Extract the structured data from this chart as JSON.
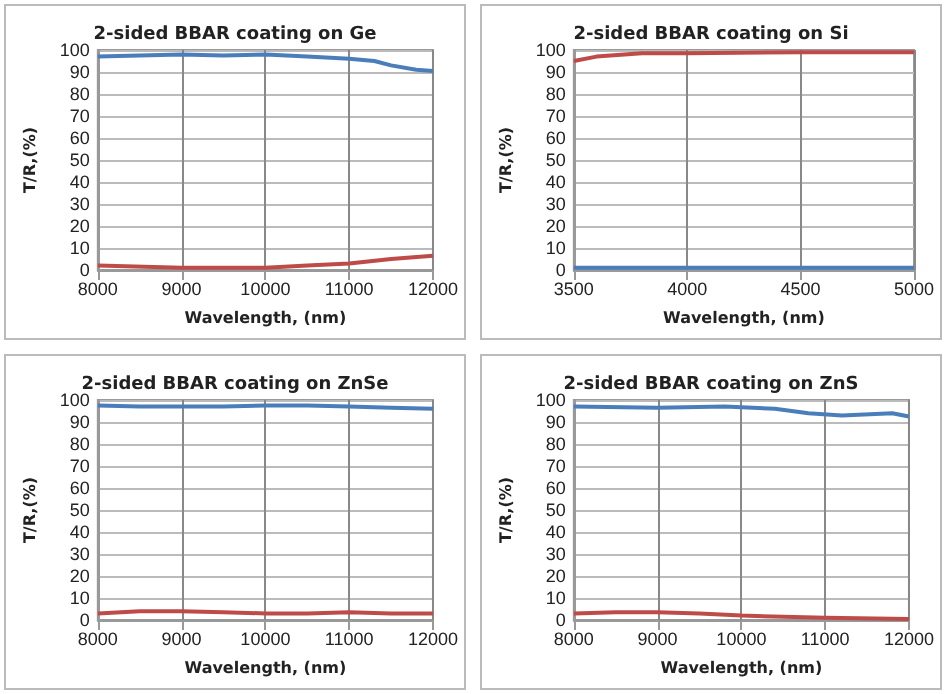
{
  "chart_data": [
    {
      "type": "line",
      "title": "2-sided BBAR coating on Ge",
      "xlabel": "Wavelength, (nm)",
      "ylabel": "T/R,(%)",
      "xlim": [
        8000,
        12000
      ],
      "xticks": [
        8000,
        9000,
        10000,
        11000,
        12000
      ],
      "ylim": [
        0,
        100
      ],
      "yticks": [
        0,
        10,
        20,
        30,
        40,
        50,
        60,
        70,
        80,
        90,
        100
      ],
      "grid": true,
      "marker": "none",
      "series": [
        {
          "color": "#4a7ebb",
          "x": [
            8000,
            8500,
            9000,
            9500,
            10000,
            10500,
            11000,
            11300,
            11500,
            11800,
            12000
          ],
          "values": [
            97,
            97.5,
            98,
            97.5,
            98,
            97,
            96,
            95,
            93,
            91,
            90.5
          ]
        },
        {
          "color": "#be4b48",
          "x": [
            8000,
            9000,
            10000,
            10500,
            11000,
            11500,
            12000
          ],
          "values": [
            2,
            1,
            1,
            2,
            3,
            5,
            6.5
          ]
        }
      ]
    },
    {
      "type": "line",
      "title": "2-sided BBAR coating on Si",
      "xlabel": "Wavelength, (nm)",
      "ylabel": "T/R,(%)",
      "xlim": [
        3500,
        5000
      ],
      "xticks": [
        3500,
        4000,
        4500,
        5000
      ],
      "ylim": [
        0,
        100
      ],
      "yticks": [
        0,
        10,
        20,
        30,
        40,
        50,
        60,
        70,
        80,
        90,
        100
      ],
      "grid": true,
      "marker": "none",
      "series": [
        {
          "color": "#be4b48",
          "x": [
            3500,
            3600,
            3800,
            4000,
            4500,
            5000
          ],
          "values": [
            95,
            97,
            98.5,
            98.5,
            99,
            99
          ]
        },
        {
          "color": "#4a7ebb",
          "x": [
            3500,
            4000,
            4500,
            5000
          ],
          "values": [
            1,
            1,
            1,
            1
          ]
        }
      ]
    },
    {
      "type": "line",
      "title": "2-sided BBAR coating on ZnSe",
      "xlabel": "Wavelength, (nm)",
      "ylabel": "T/R,(%)",
      "xlim": [
        8000,
        12000
      ],
      "xticks": [
        8000,
        9000,
        10000,
        11000,
        12000
      ],
      "ylim": [
        0,
        100
      ],
      "yticks": [
        0,
        10,
        20,
        30,
        40,
        50,
        60,
        70,
        80,
        90,
        100
      ],
      "grid": true,
      "marker": "none",
      "series": [
        {
          "color": "#4a7ebb",
          "x": [
            8000,
            8500,
            9000,
            9500,
            10000,
            10500,
            11000,
            11500,
            12000
          ],
          "values": [
            97.5,
            97,
            97,
            97,
            97.5,
            97.5,
            97,
            96.5,
            96
          ]
        },
        {
          "color": "#be4b48",
          "x": [
            8000,
            8500,
            9000,
            9500,
            10000,
            10500,
            11000,
            11500,
            12000
          ],
          "values": [
            3,
            4,
            4,
            3.5,
            3,
            3,
            3.5,
            3,
            3
          ]
        }
      ]
    },
    {
      "type": "line",
      "title": "2-sided BBAR coating on ZnS",
      "xlabel": "Wavelength, (nm)",
      "ylabel": "T/R,(%)",
      "xlim": [
        8000,
        12000
      ],
      "xticks": [
        8000,
        9000,
        10000,
        11000,
        12000
      ],
      "ylim": [
        0,
        100
      ],
      "yticks": [
        0,
        10,
        20,
        30,
        40,
        50,
        60,
        70,
        80,
        90,
        100
      ],
      "grid": true,
      "marker": "none",
      "series": [
        {
          "color": "#4a7ebb",
          "x": [
            8000,
            9000,
            9800,
            10400,
            10800,
            11200,
            11800,
            12000
          ],
          "values": [
            97,
            96.5,
            97,
            96,
            94,
            93,
            94,
            92.5
          ]
        },
        {
          "color": "#be4b48",
          "x": [
            8000,
            8500,
            9000,
            9500,
            10000,
            10500,
            11000,
            12000
          ],
          "values": [
            3,
            3.5,
            3.5,
            3,
            2,
            1.5,
            1,
            0.5
          ]
        }
      ]
    }
  ]
}
